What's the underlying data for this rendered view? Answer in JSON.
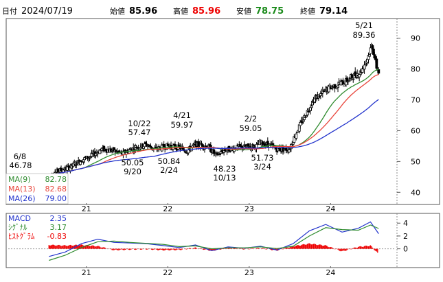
{
  "header": {
    "date_label": "日付",
    "date": "2024/07/19",
    "open_label": "始値",
    "open": "85.96",
    "high_label": "高値",
    "high": "85.96",
    "low_label": "安値",
    "low": "78.75",
    "close_label": "終値",
    "close": "79.14"
  },
  "colors": {
    "candle": "#000000",
    "candle_up_fill": "#ffffff",
    "ma9": "#2e8b2e",
    "ma13": "#e8443a",
    "ma26": "#2233cc",
    "macd": "#2233cc",
    "signal": "#2e8b2e",
    "hist": "#ee0000",
    "high_value": "#ee0000",
    "low_value": "#1a8a1a",
    "border": "#333333",
    "grid": "#999999"
  },
  "legend": {
    "ma9_label": "MA(9)",
    "ma9_value": "82.78",
    "ma13_label": "MA(13)",
    "ma13_value": "82.68",
    "ma26_label": "MA(26)",
    "ma26_value": "79.00"
  },
  "macd_legend": {
    "macd_label": "MACD",
    "macd_value": "2.35",
    "signal_label": "ｼｸﾞﾅﾙ",
    "signal_value": "3.17",
    "hist_label": "ﾋｽﾄｸﾞﾗﾑ",
    "hist_value": "-0.83"
  },
  "chart_data": [
    {
      "type": "candlestick",
      "y_ticks": [
        "90",
        "80",
        "70",
        "60",
        "50",
        "40"
      ],
      "ylim": [
        36.5,
        95.5
      ],
      "x_ticks": [
        "21",
        "22",
        "23",
        "24"
      ],
      "grid": false,
      "legend_position": "bottom-left",
      "annotations": [
        {
          "date": "6/8",
          "value": "46.78",
          "kind": "low-left"
        },
        {
          "date": "10/22",
          "value": "57.47",
          "kind": "high"
        },
        {
          "date": "9/20",
          "value": "50.05",
          "kind": "low"
        },
        {
          "date": "2/24",
          "value": "50.84",
          "kind": "low"
        },
        {
          "date": "4/21",
          "value": "59.97",
          "kind": "high"
        },
        {
          "date": "10/13",
          "value": "48.23",
          "kind": "low"
        },
        {
          "date": "2/2",
          "value": "59.05",
          "kind": "high"
        },
        {
          "date": "3/24",
          "value": "51.73",
          "kind": "low"
        },
        {
          "date": "5/21",
          "value": "89.36",
          "kind": "high"
        }
      ],
      "close_path_x": [
        2020.5,
        2020.6,
        2020.75,
        2020.9,
        2021.0,
        2021.15,
        2021.3,
        2021.4,
        2021.55,
        2021.7,
        2021.8,
        2021.95,
        2022.1,
        2022.2,
        2022.3,
        2022.45,
        2022.55,
        2022.65,
        2022.8,
        2022.95,
        2023.05,
        2023.1,
        2023.2,
        2023.3,
        2023.45,
        2023.55,
        2023.65,
        2023.75,
        2023.85,
        2023.95,
        2024.05,
        2024.15,
        2024.25,
        2024.33,
        2024.42,
        2024.47,
        2024.52,
        2024.55
      ],
      "close_path_y": [
        45.5,
        46.8,
        48.0,
        50.5,
        51.5,
        54.0,
        53.5,
        52.5,
        54.5,
        55.5,
        54.0,
        55.0,
        54.5,
        53.5,
        55.5,
        55.0,
        52.0,
        53.5,
        54.5,
        54.8,
        55.0,
        56.0,
        55.5,
        54.0,
        54.0,
        60.0,
        65.0,
        70.0,
        72.0,
        74.0,
        75.0,
        76.0,
        78.0,
        79.0,
        84.0,
        88.0,
        81.0,
        79.14
      ]
    },
    {
      "type": "line",
      "title": "MACD",
      "y_ticks": [
        "4",
        "2",
        "0"
      ],
      "ylim": [
        -2.5,
        5.2
      ],
      "x_ticks": [
        "21",
        "22",
        "23",
        "24"
      ],
      "series": [
        {
          "name": "MACD",
          "x": [
            2020.5,
            2020.7,
            2020.9,
            2021.1,
            2021.3,
            2021.5,
            2021.7,
            2021.9,
            2022.1,
            2022.3,
            2022.5,
            2022.7,
            2022.9,
            2023.1,
            2023.3,
            2023.5,
            2023.7,
            2023.9,
            2024.1,
            2024.3,
            2024.45,
            2024.55
          ],
          "values": [
            -1.2,
            -0.5,
            0.8,
            1.5,
            1.0,
            0.9,
            0.8,
            0.5,
            0.2,
            0.6,
            -0.3,
            0.3,
            0.1,
            0.4,
            -0.2,
            0.8,
            2.8,
            3.8,
            2.6,
            3.2,
            4.2,
            2.35
          ]
        },
        {
          "name": "ｼｸﾞﾅﾙ",
          "x": [
            2020.5,
            2020.7,
            2020.9,
            2021.1,
            2021.3,
            2021.5,
            2021.7,
            2021.9,
            2022.1,
            2022.3,
            2022.5,
            2022.7,
            2022.9,
            2023.1,
            2023.3,
            2023.5,
            2023.7,
            2023.9,
            2024.1,
            2024.3,
            2024.45,
            2024.55
          ],
          "values": [
            -1.8,
            -1.0,
            0.2,
            1.1,
            1.2,
            1.0,
            0.85,
            0.7,
            0.35,
            0.45,
            0.0,
            0.15,
            0.15,
            0.3,
            0.05,
            0.4,
            2.0,
            3.3,
            3.0,
            2.9,
            3.7,
            3.17
          ]
        },
        {
          "name": "ﾋｽﾄｸﾞﾗﾑ",
          "x": [
            2020.5,
            2020.7,
            2020.9,
            2021.1,
            2021.3,
            2021.5,
            2021.7,
            2021.9,
            2022.1,
            2022.3,
            2022.5,
            2022.7,
            2022.9,
            2023.1,
            2023.3,
            2023.5,
            2023.7,
            2023.9,
            2024.1,
            2024.3,
            2024.45,
            2024.55
          ],
          "values": [
            0.6,
            0.5,
            0.6,
            0.4,
            -0.2,
            -0.1,
            -0.05,
            -0.2,
            -0.15,
            0.15,
            -0.3,
            0.15,
            -0.05,
            0.1,
            -0.25,
            0.4,
            0.8,
            0.5,
            -0.4,
            0.3,
            0.5,
            -0.83
          ]
        }
      ]
    }
  ]
}
